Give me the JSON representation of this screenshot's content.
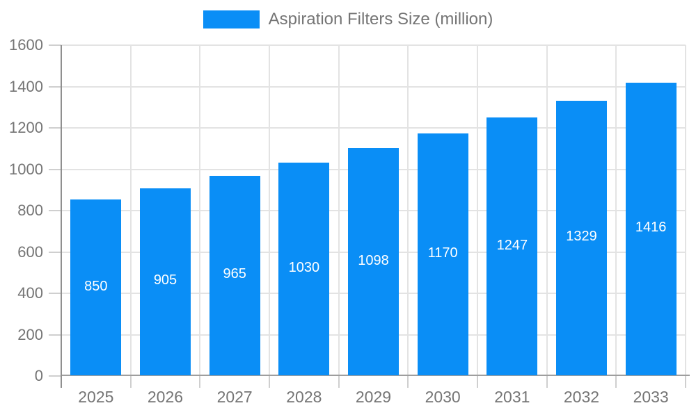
{
  "legend": {
    "label": "Aspiration Filters Size (million)"
  },
  "chart_data": {
    "type": "bar",
    "title": "Aspiration Filters Size (million)",
    "categories": [
      "2025",
      "2026",
      "2027",
      "2028",
      "2029",
      "2030",
      "2031",
      "2032",
      "2033"
    ],
    "values": [
      850,
      905,
      965,
      1030,
      1098,
      1170,
      1247,
      1329,
      1416
    ],
    "xlabel": "",
    "ylabel": "",
    "ylim": [
      0,
      1600
    ],
    "yticks": [
      0,
      200,
      400,
      600,
      800,
      1000,
      1200,
      1400,
      1600
    ],
    "grid": true,
    "legend_position": "top-center",
    "bar_labels_inside": true,
    "colors": {
      "bar": "#0a8ef6",
      "axis_text": "#757575",
      "value_label": "#ffffff",
      "grid_line": "#e3e3e3",
      "y_axis_line": "#8f8f8f",
      "x_axis_line": "#9e9e9e",
      "tick": "#cfcfcf",
      "background": "#ffffff"
    }
  }
}
